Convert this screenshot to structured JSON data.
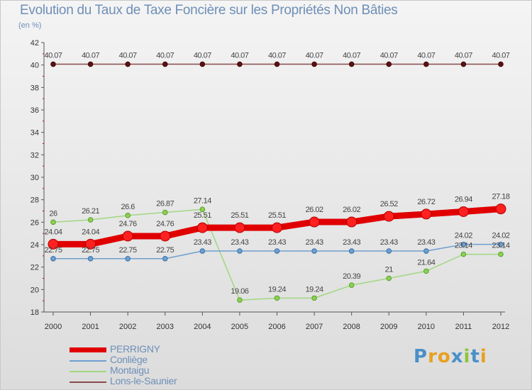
{
  "title": "Evolution du Taux de Taxe Foncière sur les Propriétés Non Bâties",
  "subtitle": "(en %)",
  "logo": {
    "text": "Proxiti",
    "letters": [
      "P",
      "r",
      "o",
      "x",
      "i",
      "t",
      "i"
    ],
    "colors": [
      "#4a90c8",
      "#e8a020",
      "#e8a020",
      "#4a90c8",
      "#8cc63f",
      "#4a90c8",
      "#e8a020"
    ]
  },
  "chart_data": {
    "type": "line",
    "title": "Evolution du Taux de Taxe Foncière sur les Propriétés Non Bâties",
    "ylabel": "(en %)",
    "xlabel": "",
    "x": [
      "2000",
      "2001",
      "2002",
      "2003",
      "2004",
      "2005",
      "2006",
      "2007",
      "2008",
      "2009",
      "2010",
      "2011",
      "2012"
    ],
    "ylim": [
      18,
      42
    ],
    "yticks": [
      18,
      20,
      22,
      24,
      26,
      28,
      30,
      32,
      34,
      36,
      38,
      40,
      42
    ],
    "grid": false,
    "legend_position": "bottom-left",
    "series": [
      {
        "name": "PERRIGNY",
        "color": "#e00000",
        "weight": "thick",
        "values": [
          24.04,
          24.04,
          24.76,
          24.76,
          25.51,
          25.51,
          25.51,
          26.02,
          26.02,
          26.52,
          26.72,
          26.94,
          27.18
        ],
        "labels": [
          "24.04",
          "24.04",
          "24.76",
          "24.76",
          "25.51",
          "25.51",
          "25.51",
          "26.02",
          "26.02",
          "26.52",
          "26.72",
          "26.94",
          "27.18"
        ]
      },
      {
        "name": "Conliège",
        "color": "#6e9fcf",
        "weight": "thin",
        "values": [
          22.75,
          22.75,
          22.75,
          22.75,
          23.43,
          23.43,
          23.43,
          23.43,
          23.43,
          23.43,
          23.43,
          24.02,
          24.02
        ],
        "labels": [
          "22.75",
          "22.75",
          "22.75",
          "22.75",
          "23.43",
          "23.43",
          "23.43",
          "23.43",
          "23.43",
          "23.43",
          "23.43",
          "24.02",
          "24.02"
        ]
      },
      {
        "name": "Montaigu",
        "color": "#a0d880",
        "weight": "thin",
        "values": [
          26,
          26.21,
          26.6,
          26.87,
          27.14,
          19.06,
          19.24,
          19.24,
          20.39,
          21,
          21.64,
          23.14,
          23.14
        ],
        "labels": [
          "26",
          "26.21",
          "26.6",
          "26.87",
          "27.14",
          "19.06",
          "19.24",
          "19.24",
          "20.39",
          "21",
          "21.64",
          "23.14",
          "23.14"
        ]
      },
      {
        "name": "Lons-le-Saunier",
        "color": "#8a4a4a",
        "weight": "thin",
        "values": [
          40.07,
          40.07,
          40.07,
          40.07,
          40.07,
          40.07,
          40.07,
          40.07,
          40.07,
          40.07,
          40.07,
          40.07,
          40.07
        ],
        "labels": [
          "40.07",
          "40.07",
          "40.07",
          "40.07",
          "40.07",
          "40.07",
          "40.07",
          "40.07",
          "40.07",
          "40.07",
          "40.07",
          "40.07",
          "40.07"
        ]
      }
    ]
  }
}
